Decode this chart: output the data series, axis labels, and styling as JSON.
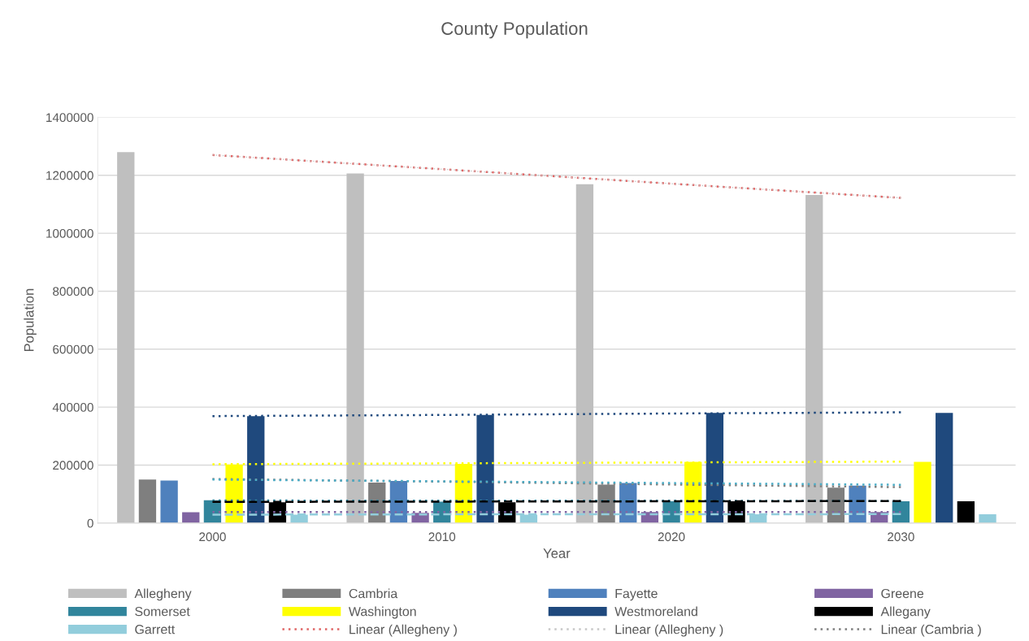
{
  "chart_data": {
    "type": "bar",
    "title": "County Population",
    "xlabel": "Year",
    "ylabel": "Population",
    "categories": [
      "2000",
      "2010",
      "2020",
      "2030"
    ],
    "ylim": [
      0,
      1400000
    ],
    "yticks": [
      0,
      200000,
      400000,
      600000,
      800000,
      1000000,
      1200000,
      1400000
    ],
    "grid": "y",
    "legend": "bottom",
    "series": [
      {
        "name": "Allegheny",
        "color": "#bfbfbf",
        "values": [
          1280000,
          1206000,
          1169000,
          1132000
        ]
      },
      {
        "name": "Cambria",
        "color": "#7f7f7f",
        "values": [
          150000,
          140000,
          133000,
          122000
        ]
      },
      {
        "name": "Fayette",
        "color": "#4f81bd",
        "values": [
          147000,
          145000,
          138000,
          129000
        ]
      },
      {
        "name": "Greene",
        "color": "#8064a2",
        "values": [
          37000,
          35000,
          38000,
          38000
        ]
      },
      {
        "name": "Somerset",
        "color": "#31859c",
        "values": [
          79000,
          74000,
          75000,
          75000
        ]
      },
      {
        "name": "Washington",
        "color": "#ffff00",
        "values": [
          202000,
          204000,
          211000,
          211000
        ]
      },
      {
        "name": "Westmoreland",
        "color": "#1f497d",
        "values": [
          369000,
          373000,
          380000,
          380000
        ]
      },
      {
        "name": "Allegany",
        "color": "#000000",
        "values": [
          72000,
          72000,
          75000,
          75000
        ]
      },
      {
        "name": "Garrett",
        "color": "#92cddc",
        "values": [
          29000,
          29000,
          30000,
          30000
        ]
      },
      {
        "type": "line",
        "name": "Linear (Allegheny )",
        "color": "#e06666",
        "line_style": "dotted",
        "values": [
          1270000,
          1221000,
          1171000,
          1122000
        ]
      },
      {
        "type": "line",
        "name": "Linear (Allegheny )",
        "color": "#c8c8c8",
        "line_style": "dotted",
        "values": [
          1270000,
          1221000,
          1171000,
          1122000
        ]
      },
      {
        "type": "line",
        "name": "Linear (Cambria )",
        "color": "#7f7f7f",
        "line_style": "dotted",
        "values": [
          152000,
          143000,
          133000,
          124000
        ]
      },
      {
        "type": "line",
        "color": "#4bacc6",
        "line_style": "dotted",
        "values": [
          150000,
          144000,
          138000,
          132000
        ]
      },
      {
        "type": "line",
        "color": "#8064a2",
        "line_style": "dotted",
        "values": [
          38000,
          38000,
          38000,
          38000
        ]
      },
      {
        "type": "line",
        "color": "#31859c",
        "line_style": "dotted",
        "values": [
          78000,
          77000,
          77000,
          76000
        ]
      },
      {
        "type": "line",
        "color": "#ffff00",
        "line_style": "dotted",
        "values": [
          203000,
          206000,
          209000,
          212000
        ]
      },
      {
        "type": "line",
        "color": "#1f497d",
        "line_style": "dotted",
        "values": [
          369000,
          373000,
          378000,
          382000
        ]
      },
      {
        "type": "line",
        "color": "#000000",
        "line_style": "dashed",
        "values": [
          73000,
          74000,
          75000,
          76000
        ]
      },
      {
        "type": "line",
        "color": "#92cddc",
        "line_style": "dashed",
        "values": [
          29000,
          30000,
          30000,
          31000
        ]
      }
    ]
  }
}
